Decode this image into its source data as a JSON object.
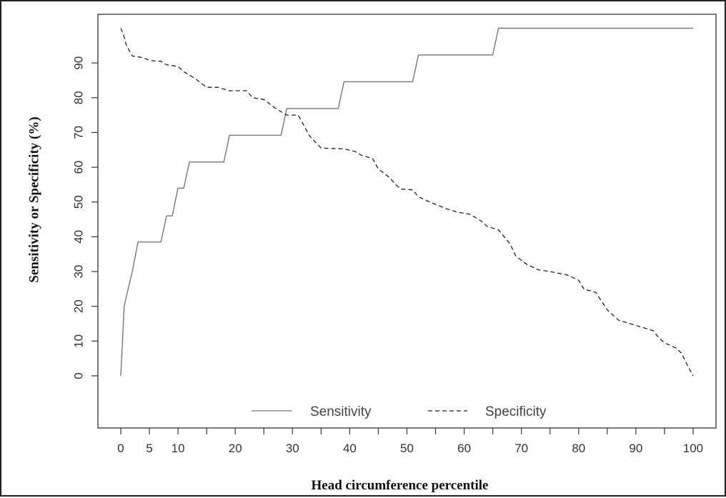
{
  "chart_data": {
    "type": "line",
    "title": "",
    "xlabel": "Head circumference percentile",
    "ylabel": "Sensitivity or Specificity (%)",
    "xlim": [
      -4,
      104
    ],
    "ylim": [
      -15,
      104
    ],
    "x_ticks": [
      0,
      5,
      10,
      15,
      20,
      25,
      30,
      35,
      40,
      45,
      50,
      55,
      60,
      65,
      70,
      75,
      80,
      85,
      90,
      95,
      100
    ],
    "x_tick_labels": [
      "0",
      "5",
      "10",
      "",
      "20",
      "",
      "30",
      "",
      "40",
      "",
      "50",
      "",
      "60",
      "",
      "70",
      "",
      "80",
      "",
      "90",
      "",
      "100"
    ],
    "y_ticks": [
      0,
      10,
      20,
      30,
      40,
      50,
      60,
      70,
      80,
      90
    ],
    "y_tick_labels": [
      "0",
      "10",
      "20",
      "30",
      "40",
      "50",
      "60",
      "70",
      "80",
      "90"
    ],
    "grid": false,
    "legend": {
      "placement": "bottom-center",
      "entries": [
        "Sensitivity",
        "Specificity"
      ]
    },
    "series": [
      {
        "name": "Sensitivity",
        "style": "solid",
        "color": "#777777",
        "points": [
          [
            0,
            0
          ],
          [
            0.3,
            10
          ],
          [
            0.6,
            20
          ],
          [
            1,
            23
          ],
          [
            2,
            30
          ],
          [
            3,
            38.5
          ],
          [
            7,
            38.5
          ],
          [
            8,
            46
          ],
          [
            9,
            46
          ],
          [
            10,
            54
          ],
          [
            11,
            54
          ],
          [
            12,
            61.5
          ],
          [
            18,
            61.5
          ],
          [
            19,
            69.2
          ],
          [
            28,
            69.2
          ],
          [
            29,
            76.9
          ],
          [
            38,
            76.9
          ],
          [
            39,
            84.6
          ],
          [
            51,
            84.6
          ],
          [
            52,
            92.3
          ],
          [
            65,
            92.3
          ],
          [
            66,
            100
          ],
          [
            100,
            100
          ]
        ]
      },
      {
        "name": "Specificity",
        "style": "dashed",
        "color": "#222222",
        "points": [
          [
            0,
            100
          ],
          [
            0.5,
            98
          ],
          [
            1,
            95
          ],
          [
            2,
            92
          ],
          [
            4,
            91.5
          ],
          [
            5,
            90.7
          ],
          [
            7,
            90.5
          ],
          [
            8,
            89.5
          ],
          [
            10,
            89
          ],
          [
            11,
            87.5
          ],
          [
            13,
            85.5
          ],
          [
            15,
            83
          ],
          [
            17,
            83
          ],
          [
            19,
            82
          ],
          [
            22,
            82
          ],
          [
            23,
            80
          ],
          [
            25,
            79.5
          ],
          [
            27,
            77
          ],
          [
            29,
            75
          ],
          [
            31,
            75
          ],
          [
            33,
            69
          ],
          [
            35,
            65.5
          ],
          [
            39,
            65.3
          ],
          [
            41,
            64.5
          ],
          [
            42,
            63.5
          ],
          [
            44,
            62.5
          ],
          [
            45,
            59.5
          ],
          [
            47,
            57
          ],
          [
            48,
            55
          ],
          [
            49,
            53.7
          ],
          [
            51,
            53.5
          ],
          [
            52,
            51.5
          ],
          [
            54,
            50
          ],
          [
            57,
            48
          ],
          [
            59,
            47
          ],
          [
            61,
            46.5
          ],
          [
            63,
            44.5
          ],
          [
            64,
            43
          ],
          [
            66,
            42
          ],
          [
            68,
            38
          ],
          [
            69,
            34.5
          ],
          [
            71,
            32
          ],
          [
            73,
            30.5
          ],
          [
            75,
            30
          ],
          [
            78,
            29
          ],
          [
            80,
            27.5
          ],
          [
            81,
            24.8
          ],
          [
            82,
            24.5
          ],
          [
            83,
            24
          ],
          [
            85,
            19
          ],
          [
            87,
            16
          ],
          [
            89,
            15
          ],
          [
            91,
            14
          ],
          [
            93,
            13
          ],
          [
            94,
            11
          ],
          [
            95,
            9.5
          ],
          [
            97,
            8
          ],
          [
            98,
            6.5
          ],
          [
            99,
            3
          ],
          [
            100,
            0
          ]
        ]
      }
    ]
  }
}
